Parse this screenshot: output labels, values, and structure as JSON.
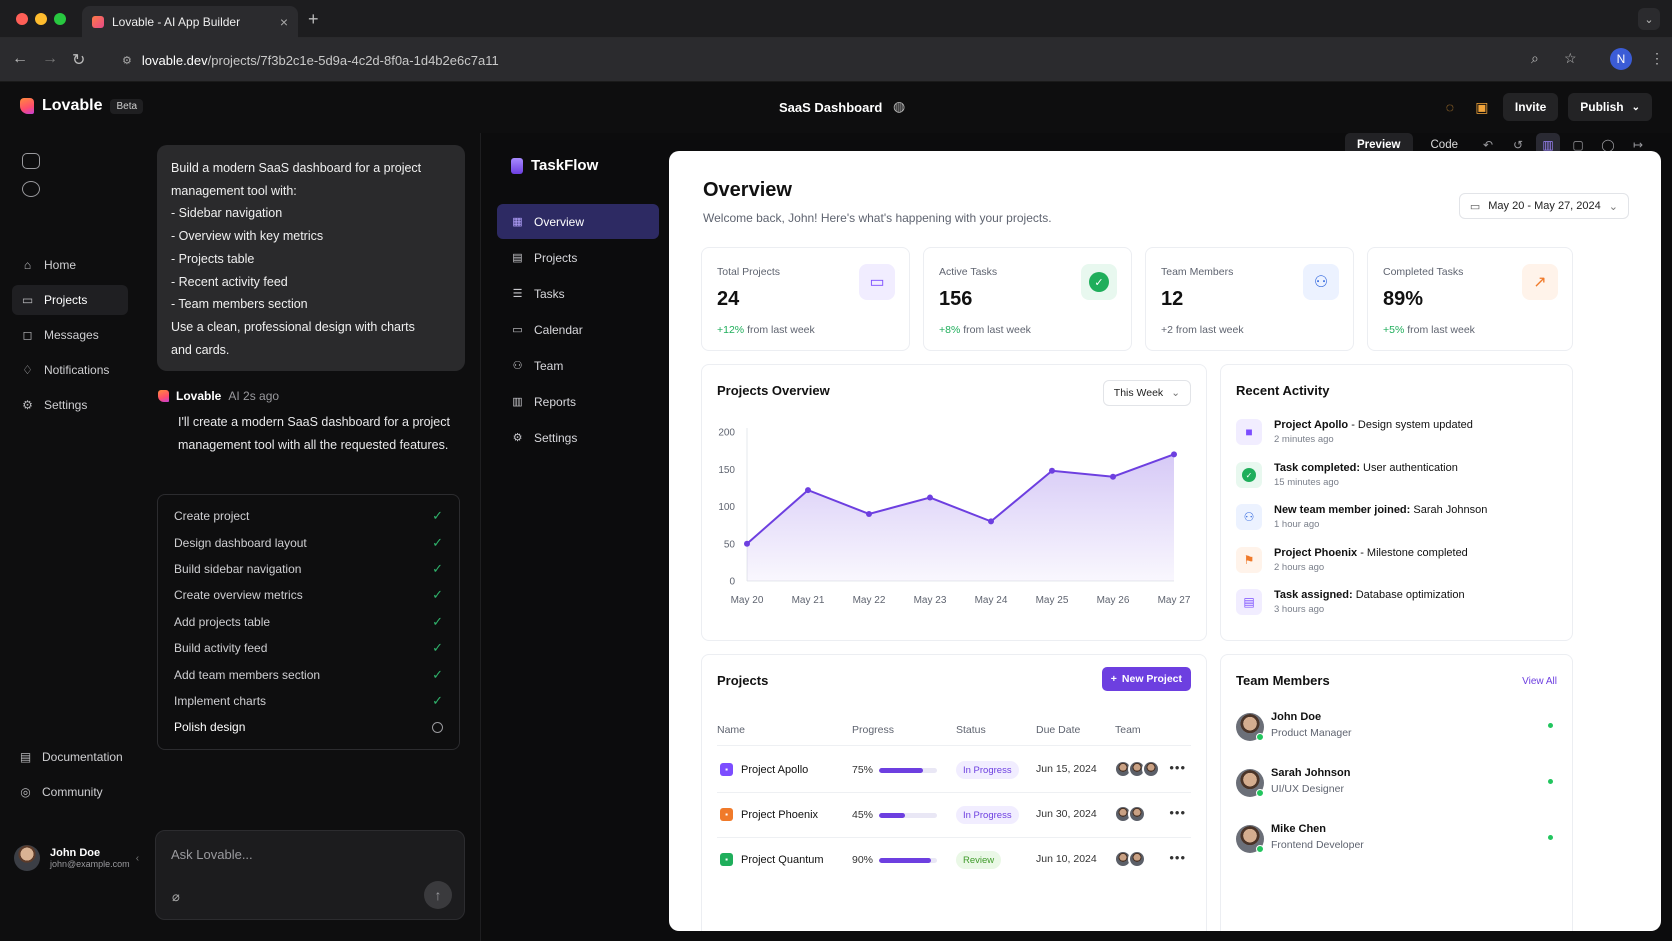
{
  "browser": {
    "tab_title": "Lovable - AI App Builder",
    "tab_close": "×",
    "new_tab": "+",
    "url_host": "lovable.dev",
    "url_path": "/projects/7f3b2c1e-5d9a-4c2d-8f0a-1d4b2e6c7a11",
    "profile_initial": "N"
  },
  "app": {
    "brand": "Lovable",
    "beta": "Beta",
    "project_title": "SaaS Dashboard",
    "invite": "Invite",
    "publish": "Publish"
  },
  "rail": {
    "items": [
      {
        "label": "Home",
        "icon": "home-icon"
      },
      {
        "label": "Projects",
        "icon": "file-icon"
      },
      {
        "label": "Messages",
        "icon": "message-icon"
      },
      {
        "label": "Notifications",
        "icon": "bell-icon"
      },
      {
        "label": "Settings",
        "icon": "gear-icon"
      }
    ],
    "bottom": [
      {
        "label": "Documentation",
        "icon": "doc-icon"
      },
      {
        "label": "Community",
        "icon": "community-icon"
      }
    ],
    "user": {
      "name": "John Doe",
      "email": "john@example.com"
    }
  },
  "chat": {
    "prompt_lines": [
      "Build a modern SaaS dashboard for a project",
      "management tool with:",
      "- Sidebar navigation",
      "- Overview with key metrics",
      "- Projects table",
      "- Recent activity feed",
      "- Team members section",
      "Use a clean, professional design with charts",
      "and cards."
    ],
    "assistant_name": "Lovable",
    "assistant_meta": "AI 2s ago",
    "assistant_text": "I'll create a modern SaaS dashboard for a project management tool with all the requested features.",
    "checklist": [
      {
        "label": "Create project",
        "done": true
      },
      {
        "label": "Design dashboard layout",
        "done": true
      },
      {
        "label": "Build sidebar navigation",
        "done": true
      },
      {
        "label": "Create overview metrics",
        "done": true
      },
      {
        "label": "Add projects table",
        "done": true
      },
      {
        "label": "Build activity feed",
        "done": true
      },
      {
        "label": "Add team members section",
        "done": true
      },
      {
        "label": "Implement charts",
        "done": true
      },
      {
        "label": "Polish design",
        "done": false
      }
    ],
    "composer_placeholder": "Ask Lovable..."
  },
  "preview_toolbar": {
    "preview": "Preview",
    "code": "Code"
  },
  "taskflow": {
    "brand": "TaskFlow",
    "nav": [
      {
        "label": "Overview",
        "icon": "grid-icon"
      },
      {
        "label": "Projects",
        "icon": "folder-icon"
      },
      {
        "label": "Tasks",
        "icon": "list-icon"
      },
      {
        "label": "Calendar",
        "icon": "calendar-icon"
      },
      {
        "label": "Team",
        "icon": "users-icon"
      },
      {
        "label": "Reports",
        "icon": "chart-icon"
      },
      {
        "label": "Settings",
        "icon": "gear-icon"
      }
    ]
  },
  "dashboard": {
    "title": "Overview",
    "subtitle": "Welcome back, John! Here's what's happening with your projects.",
    "date_range": "May 20 - May 27, 2024",
    "kpis": [
      {
        "label": "Total Projects",
        "value": "24",
        "change": "+12%",
        "suffix": " from last week",
        "icon": "folder-icon",
        "color": "#7c4dff",
        "bg": "#f1edff"
      },
      {
        "label": "Active Tasks",
        "value": "156",
        "change": "+8%",
        "suffix": " from last week",
        "icon": "check-circle-icon",
        "color": "#ffffff",
        "bg": "#e8f8ef"
      },
      {
        "label": "Team Members",
        "value": "12",
        "change": "",
        "suffix": "+2 from last week",
        "icon": "users-icon",
        "color": "#3b6fe0",
        "bg": "#ecf2ff"
      },
      {
        "label": "Completed Tasks",
        "value": "89%",
        "change": "+5%",
        "suffix": " from last week",
        "icon": "trend-up-icon",
        "color": "#f07a2a",
        "bg": "#fff3ea"
      }
    ],
    "projects_overview_title": "Projects Overview",
    "range_select": "This Week",
    "recent_activity_title": "Recent Activity",
    "activity": [
      {
        "bold": "Project Apollo",
        "rest": " - Design system updated",
        "time": "2 minutes ago",
        "icon": "folder-icon",
        "color": "#7c4dff",
        "bg": "#f1edff"
      },
      {
        "bold": "Task completed:",
        "rest": " User authentication",
        "time": "15 minutes ago",
        "icon": "check-circle-icon",
        "color": "#1fae5b",
        "bg": "#e8f8ef"
      },
      {
        "bold": "New team member joined:",
        "rest": " Sarah Johnson",
        "time": "1 hour ago",
        "icon": "user-plus-icon",
        "color": "#3b6fe0",
        "bg": "#ecf2ff"
      },
      {
        "bold": "Project Phoenix",
        "rest": " - Milestone completed",
        "time": "2 hours ago",
        "icon": "flag-icon",
        "color": "#f07a2a",
        "bg": "#fff3ea"
      },
      {
        "bold": "Task assigned:",
        "rest": " Database optimization",
        "time": "3 hours ago",
        "icon": "clipboard-icon",
        "color": "#7c4dff",
        "bg": "#f1edff"
      }
    ],
    "projects_title": "Projects",
    "new_project": "New Project",
    "table_headers": [
      "Name",
      "Progress",
      "Status",
      "Due Date",
      "Team"
    ],
    "projects": [
      {
        "name": "Project Apollo",
        "progress": 75,
        "progress_label": "75%",
        "status": "In Progress",
        "due": "Jun 15, 2024",
        "team": 3,
        "color": "#7c4dff",
        "status_bg": "#f1edff",
        "status_fg": "#6d3fe0"
      },
      {
        "name": "Project Phoenix",
        "progress": 45,
        "progress_label": "45%",
        "status": "In Progress",
        "due": "Jun 30, 2024",
        "team": 2,
        "color": "#f07a2a",
        "status_bg": "#f1edff",
        "status_fg": "#6d3fe0"
      },
      {
        "name": "Project Quantum",
        "progress": 90,
        "progress_label": "90%",
        "status": "Review",
        "due": "Jun 10, 2024",
        "team": 2,
        "color": "#1fae5b",
        "status_bg": "#eaf8e6",
        "status_fg": "#3f9a2a"
      }
    ],
    "team_title": "Team Members",
    "view_all": "View All",
    "team": [
      {
        "name": "John Doe",
        "role": "Product Manager"
      },
      {
        "name": "Sarah Johnson",
        "role": "UI/UX Designer"
      },
      {
        "name": "Mike Chen",
        "role": "Frontend Developer"
      }
    ]
  },
  "chart_data": {
    "type": "area",
    "categories": [
      "May 20",
      "May 21",
      "May 22",
      "May 23",
      "May 24",
      "May 25",
      "May 26",
      "May 27"
    ],
    "values": [
      50,
      122,
      90,
      112,
      80,
      148,
      140,
      170
    ],
    "ylim": [
      0,
      200
    ],
    "yticks": [
      0,
      50,
      100,
      150,
      200
    ],
    "grid": false,
    "color": "#6d3fe0"
  }
}
